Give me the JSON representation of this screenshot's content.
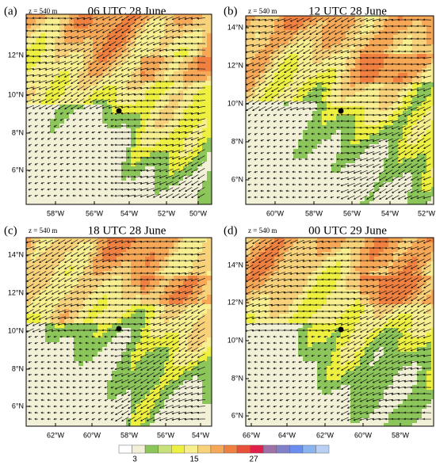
{
  "panels": [
    {
      "label": "(a)",
      "height": "z = 540 m",
      "title": "06 UTC 28 June",
      "xticks": [
        "58°W",
        "56°W",
        "54°W",
        "52°W",
        "50°W"
      ],
      "yticks": [
        "12°N",
        "10°N",
        "8°N",
        "6°N"
      ]
    },
    {
      "label": "(b)",
      "height": "z = 540 m",
      "title": "12 UTC 28 June",
      "xticks": [
        "60°W",
        "58°W",
        "56°W",
        "54°W",
        "52°W"
      ],
      "yticks": [
        "14°N",
        "12°N",
        "10°N",
        "8°N",
        "6°N"
      ]
    },
    {
      "label": "(c)",
      "height": "z = 540 m",
      "title": "18 UTC 28 June",
      "xticks": [
        "62°W",
        "60°W",
        "58°W",
        "56°W",
        "54°W"
      ],
      "yticks": [
        "14°N",
        "12°N",
        "10°N",
        "8°N",
        "6°N"
      ]
    },
    {
      "label": "(d)",
      "height": "z = 540 m",
      "title": "00 UTC 29 June",
      "xticks": [
        "66°W",
        "64°W",
        "62°W",
        "60°W",
        "58°W"
      ],
      "yticks": [
        "14°N",
        "12°N",
        "10°N",
        "8°N",
        "6°N"
      ]
    }
  ],
  "colorbar": {
    "colors": [
      "#ffffff",
      "#f3f0d8",
      "#8cc65a",
      "#c8e07a",
      "#eef040",
      "#f8f090",
      "#f8d27a",
      "#f6a857",
      "#f08040",
      "#e8503a",
      "#e0204a",
      "#a070a8",
      "#8080c8",
      "#6a8ef0",
      "#8ab4f0",
      "#b8d0f4"
    ],
    "labels": [
      "3",
      "15",
      "27"
    ]
  }
}
